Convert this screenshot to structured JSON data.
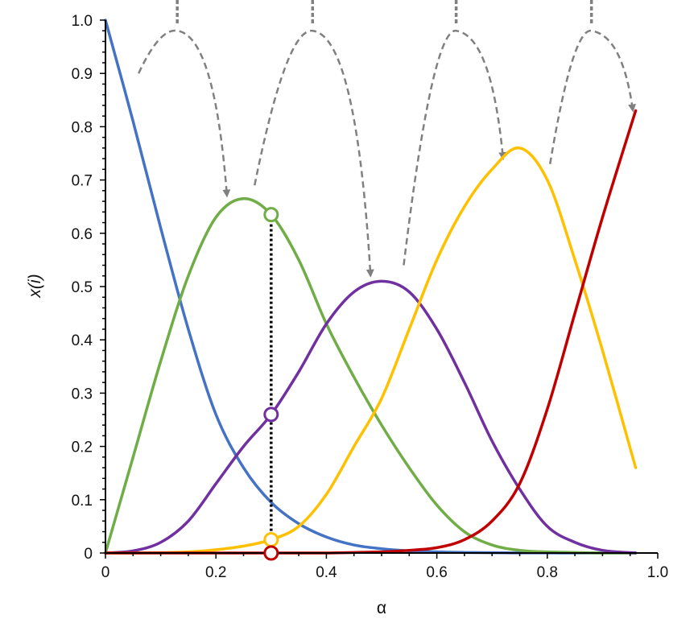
{
  "chart_data": {
    "type": "line",
    "xlabel": "α",
    "ylabel": "x(i)",
    "xlim": [
      0,
      1.0
    ],
    "ylim": [
      0,
      1.0
    ],
    "x_ticks": [
      0,
      0.2,
      0.4,
      0.6,
      0.8,
      1.0
    ],
    "x_tick_labels": [
      "0",
      "0.2",
      "0.4",
      "0.6",
      "0.8",
      "1.0"
    ],
    "y_ticks": [
      0,
      0.1,
      0.2,
      0.3,
      0.4,
      0.5,
      0.6,
      0.7,
      0.8,
      0.9,
      1.0
    ],
    "y_tick_labels": [
      "0",
      "0.1",
      "0.2",
      "0.3",
      "0.4",
      "0.5",
      "0.6",
      "0.7",
      "0.8",
      "0.9",
      "1.0"
    ],
    "grid": false,
    "legend": "none",
    "x": [
      0,
      0.05,
      0.1,
      0.15,
      0.2,
      0.25,
      0.3,
      0.35,
      0.4,
      0.45,
      0.5,
      0.55,
      0.6,
      0.65,
      0.7,
      0.75,
      0.8,
      0.85,
      0.9,
      0.96
    ],
    "series": [
      {
        "color": "#4472c4",
        "values": [
          1.0,
          0.81,
          0.61,
          0.42,
          0.26,
          0.16,
          0.095,
          0.055,
          0.03,
          0.015,
          0.008,
          0.004,
          0.002,
          0.001,
          0.0005,
          0.0002,
          0.0001,
          0,
          0,
          0
        ]
      },
      {
        "color": "#70ad47",
        "values": [
          0.0,
          0.18,
          0.36,
          0.52,
          0.63,
          0.665,
          0.635,
          0.55,
          0.43,
          0.33,
          0.24,
          0.16,
          0.09,
          0.04,
          0.015,
          0.005,
          0.002,
          0.001,
          0,
          0
        ]
      },
      {
        "color": "#7030a0",
        "values": [
          0.0,
          0.004,
          0.02,
          0.06,
          0.13,
          0.2,
          0.26,
          0.34,
          0.43,
          0.49,
          0.51,
          0.49,
          0.42,
          0.32,
          0.21,
          0.12,
          0.05,
          0.02,
          0.005,
          0.0
        ]
      },
      {
        "color": "#ffc000",
        "values": [
          0.0,
          0.0,
          0.0005,
          0.002,
          0.006,
          0.013,
          0.025,
          0.05,
          0.11,
          0.2,
          0.29,
          0.42,
          0.55,
          0.65,
          0.72,
          0.76,
          0.7,
          0.55,
          0.38,
          0.16
        ]
      },
      {
        "color": "#c00000",
        "values": [
          0.0,
          0.0,
          0.0,
          0.0,
          0.0,
          0.0,
          0.0,
          0.0,
          0.0,
          0.001,
          0.002,
          0.005,
          0.01,
          0.025,
          0.06,
          0.13,
          0.27,
          0.45,
          0.63,
          0.83
        ]
      }
    ],
    "annotations": {
      "vertical_line_x": 0.3,
      "markers": [
        {
          "x": 0.3,
          "y": 0.635,
          "color": "#70ad47"
        },
        {
          "x": 0.3,
          "y": 0.26,
          "color": "#7030a0"
        },
        {
          "x": 0.3,
          "y": 0.025,
          "color": "#ffc000"
        },
        {
          "x": 0.3,
          "y": 0.0,
          "color": "#c00000"
        }
      ],
      "arrows": [
        {
          "from": [
            0.06,
            0.9
          ],
          "top": [
            0.13,
            0.98
          ],
          "to": [
            0.22,
            0.67
          ]
        },
        {
          "from": [
            0.27,
            0.69
          ],
          "top": [
            0.375,
            0.98
          ],
          "to": [
            0.48,
            0.52
          ]
        },
        {
          "from": [
            0.54,
            0.54
          ],
          "top": [
            0.635,
            0.98
          ],
          "to": [
            0.72,
            0.74
          ]
        },
        {
          "from": [
            0.805,
            0.73
          ],
          "top": [
            0.88,
            0.98
          ],
          "to": [
            0.955,
            0.83
          ]
        }
      ],
      "arrow_color": "#808080"
    }
  }
}
